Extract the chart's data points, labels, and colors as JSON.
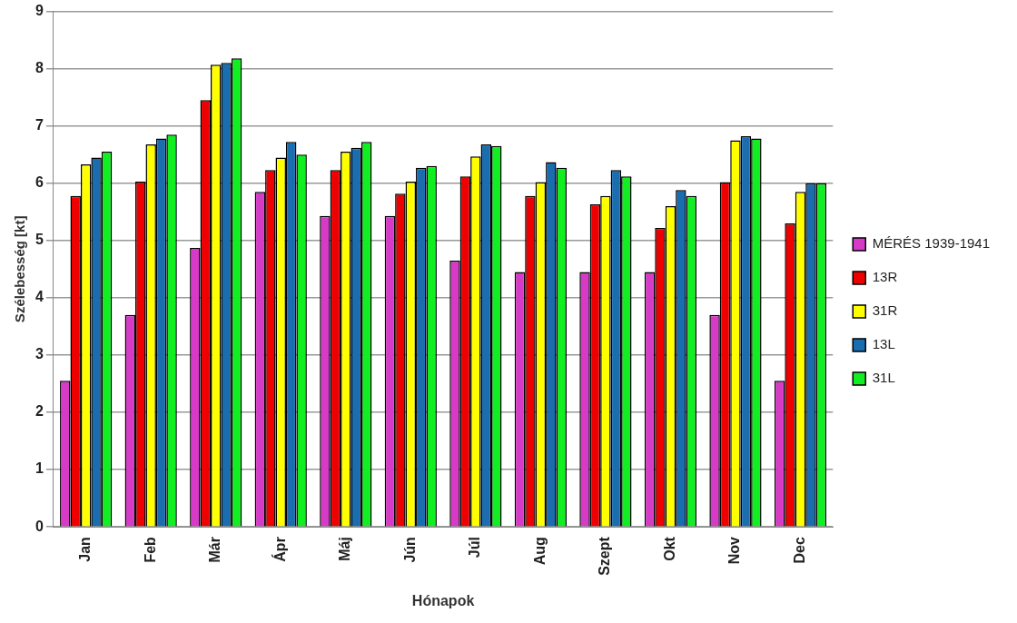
{
  "chart_data": {
    "type": "bar",
    "xlabel": "Hónapok",
    "ylabel": "Szélebesség [kt]",
    "categories": [
      "Jan",
      "Feb",
      "Már",
      "Ápr",
      "Máj",
      "Jún",
      "Júl",
      "Aug",
      "Szept",
      "Okt",
      "Nov",
      "Dec"
    ],
    "series": [
      {
        "name": "MÉRÉS 1939-1941",
        "color": "#d83ac8",
        "values": [
          2.55,
          3.7,
          4.87,
          5.85,
          5.43,
          5.43,
          4.65,
          4.45,
          4.45,
          4.45,
          3.7,
          2.55
        ]
      },
      {
        "name": "13R",
        "color": "#ee0000",
        "values": [
          5.78,
          6.03,
          7.45,
          6.23,
          6.23,
          5.82,
          6.12,
          5.78,
          5.63,
          5.22,
          6.02,
          5.3
        ]
      },
      {
        "name": "31R",
        "color": "#ffff00",
        "values": [
          6.33,
          6.68,
          8.07,
          6.45,
          6.55,
          6.03,
          6.47,
          6.02,
          5.78,
          5.6,
          6.75,
          5.85
        ]
      },
      {
        "name": "13L",
        "color": "#1a6eb0",
        "values": [
          6.45,
          6.78,
          8.1,
          6.72,
          6.62,
          6.27,
          6.68,
          6.37,
          6.23,
          5.88,
          6.82,
          6.0
        ]
      },
      {
        "name": "31L",
        "color": "#11ee22",
        "values": [
          6.55,
          6.85,
          8.18,
          6.5,
          6.72,
          6.3,
          6.65,
          6.27,
          6.12,
          5.78,
          6.78,
          6.0
        ]
      }
    ],
    "ylim": [
      0,
      9
    ],
    "yticks": [
      0,
      1,
      2,
      3,
      4,
      5,
      6,
      7,
      8,
      9
    ],
    "grid": "y",
    "legend": "right"
  }
}
